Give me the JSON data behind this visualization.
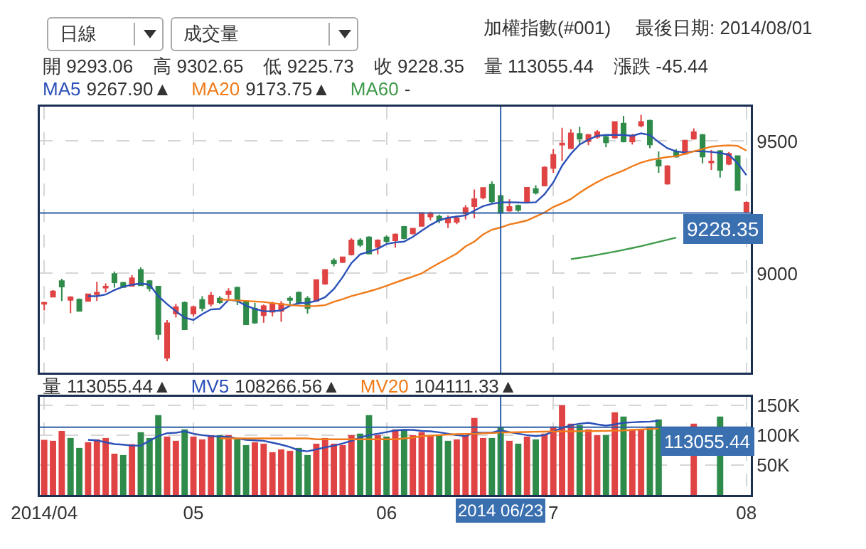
{
  "chart_data": [
    {
      "type": "candlestick",
      "title": "加權指數(#001)",
      "subtitle": "最後日期: 2014/08/01",
      "categories": [
        "2014/04",
        null,
        null,
        null,
        null,
        null,
        null,
        null,
        null,
        null,
        null,
        null,
        null,
        null,
        null,
        null,
        null,
        "05",
        null,
        null,
        null,
        null,
        null,
        null,
        null,
        null,
        null,
        null,
        null,
        null,
        null,
        null,
        null,
        null,
        null,
        null,
        null,
        null,
        null,
        "06",
        null,
        null,
        null,
        null,
        null,
        null,
        null,
        null,
        null,
        null,
        null,
        null,
        "2014 06/23",
        null,
        null,
        null,
        null,
        null,
        "07",
        null,
        null,
        null,
        null,
        null,
        null,
        null,
        null,
        null,
        null,
        null,
        null,
        null,
        null,
        null,
        null,
        null,
        null,
        null,
        null,
        null,
        "08"
      ],
      "ohlc": [
        [
          8885,
          8893,
          8860,
          8889
        ],
        [
          8912,
          8937,
          8910,
          8932
        ],
        [
          8971,
          8980,
          8896,
          8950
        ],
        [
          8900,
          8914,
          8850,
          8910
        ],
        [
          8901,
          8905,
          8857,
          8858
        ],
        [
          8896,
          8922,
          8893,
          8921
        ],
        [
          8921,
          8968,
          8896,
          8927
        ],
        [
          8946,
          8962,
          8928,
          8950
        ],
        [
          8998,
          9007,
          8946,
          8966
        ],
        [
          8964,
          8968,
          8946,
          8948
        ],
        [
          8953,
          8993,
          8950,
          8982
        ],
        [
          9013,
          9023,
          8953,
          8955
        ],
        [
          8971,
          8975,
          8932,
          8944
        ],
        [
          8950,
          8953,
          8749,
          8771
        ],
        [
          8681,
          8824,
          8668,
          8812
        ],
        [
          8848,
          8885,
          8833,
          8873
        ],
        [
          8889,
          8894,
          8787,
          8789
        ],
        [
          8848,
          8878,
          8837,
          8873
        ],
        [
          8900,
          8914,
          8857,
          8869
        ],
        [
          8885,
          8930,
          8875,
          8916
        ],
        [
          8905,
          8914,
          8885,
          8891
        ],
        [
          8921,
          8944,
          8905,
          8932
        ],
        [
          8946,
          8950,
          8880,
          8900
        ],
        [
          8893,
          8896,
          8806,
          8808
        ],
        [
          8867,
          8889,
          8810,
          8814
        ],
        [
          8842,
          8882,
          8814,
          8876
        ],
        [
          8855,
          8893,
          8837,
          8885
        ],
        [
          8858,
          8896,
          8817,
          8885
        ],
        [
          8905,
          8914,
          8882,
          8900
        ],
        [
          8927,
          8932,
          8882,
          8889
        ],
        [
          8905,
          8914,
          8848,
          8869
        ],
        [
          8896,
          8975,
          8893,
          8975
        ],
        [
          8961,
          9014,
          8957,
          9013
        ],
        [
          9048,
          9057,
          9027,
          9038
        ],
        [
          9043,
          9061,
          9039,
          9061
        ],
        [
          9072,
          9133,
          9068,
          9125
        ],
        [
          9125,
          9133,
          9100,
          9108
        ],
        [
          9136,
          9140,
          9072,
          9075
        ],
        [
          9100,
          9129,
          9072,
          9125
        ],
        [
          9136,
          9143,
          9115,
          9122
        ],
        [
          9125,
          9151,
          9097,
          9147
        ],
        [
          9176,
          9179,
          9129,
          9133
        ],
        [
          9151,
          9172,
          9147,
          9169
        ],
        [
          9179,
          9229,
          9179,
          9228
        ],
        [
          9215,
          9233,
          9201,
          9226
        ],
        [
          9215,
          9222,
          9190,
          9201
        ],
        [
          9192,
          9219,
          9172,
          9208
        ],
        [
          9195,
          9219,
          9186,
          9208
        ],
        [
          9226,
          9258,
          9204,
          9247
        ],
        [
          9254,
          9317,
          9208,
          9281
        ],
        [
          9287,
          9326,
          9280,
          9323
        ],
        [
          9335,
          9348,
          9265,
          9272
        ],
        [
          9293.06,
          9302.65,
          9225.73,
          9228.35
        ],
        [
          9237,
          9280,
          9233,
          9251
        ],
        [
          9256,
          9260,
          9233,
          9240
        ],
        [
          9272,
          9326,
          9272,
          9324
        ],
        [
          9319,
          9333,
          9298,
          9305
        ],
        [
          9332,
          9405,
          9330,
          9400
        ],
        [
          9398,
          9470,
          9380,
          9448
        ],
        [
          9486,
          9550,
          9425,
          9491
        ],
        [
          9473,
          9545,
          9470,
          9529
        ],
        [
          9527,
          9554,
          9484,
          9509
        ],
        [
          9500,
          9527,
          9484,
          9523
        ],
        [
          9516,
          9541,
          9509,
          9534
        ],
        [
          9516,
          9520,
          9477,
          9495
        ],
        [
          9513,
          9573,
          9509,
          9572
        ],
        [
          9566,
          9595,
          9495,
          9498
        ],
        [
          9498,
          9527,
          9487,
          9520
        ],
        [
          9559,
          9599,
          9552,
          9572
        ],
        [
          9577,
          9581,
          9473,
          9487
        ],
        [
          9427,
          9461,
          9380,
          9407
        ],
        [
          9339,
          9409,
          9335,
          9405
        ],
        [
          9461,
          9470,
          9437,
          9441
        ],
        [
          9452,
          9505,
          9448,
          9502
        ],
        [
          9509,
          9548,
          9505,
          9534
        ],
        [
          9523,
          9527,
          9416,
          9441
        ],
        [
          9419,
          9466,
          9391,
          9423
        ],
        [
          9462,
          9466,
          9362,
          9391
        ],
        [
          9414,
          9459,
          9409,
          9452
        ],
        [
          9443,
          9444,
          9312,
          9315
        ],
        [
          9233,
          9272,
          9233,
          9267
        ]
      ],
      "series": [
        {
          "type": "line",
          "name": "MA5",
          "color": "#2b50b8",
          "values": [
            null,
            null,
            null,
            null,
            null,
            8914,
            8914,
            8920,
            8937,
            8950,
            8957,
            8962,
            8957,
            8914,
            8884,
            8857,
            8833,
            8824,
            8846,
            8864,
            8866,
            8900,
            8896,
            8878,
            8866,
            8857,
            8857,
            8860,
            8878,
            8887,
            8889,
            8896,
            8910,
            8941,
            8986,
            9039,
            9072,
            9082,
            9093,
            9111,
            9117,
            9120,
            9138,
            9161,
            9183,
            9201,
            9210,
            9215,
            9219,
            9237,
            9254,
            9263,
            9267.9,
            9269,
            9268,
            9267,
            9269,
            9299,
            9344,
            9407,
            9452,
            9487,
            9505,
            9520,
            9523,
            9523,
            9523,
            9520,
            9529,
            9523,
            9496,
            9473,
            9461,
            9457,
            9461,
            9461,
            9459,
            9455,
            9448,
            9416,
            9371
          ]
        },
        {
          "type": "line",
          "name": "MA20",
          "color": "#f07b1a",
          "values": [
            null,
            null,
            null,
            null,
            null,
            null,
            null,
            null,
            null,
            null,
            null,
            null,
            null,
            null,
            null,
            null,
            null,
            null,
            null,
            null,
            8901,
            8900,
            8898,
            8896,
            8894,
            8892,
            8888,
            8884,
            8880,
            8878,
            8876,
            8877,
            8880,
            8893,
            8903,
            8914,
            8923,
            8932,
            8942,
            8953,
            8965,
            8977,
            8988,
            9000,
            9020,
            9039,
            9057,
            9075,
            9102,
            9120,
            9147,
            9165,
            9173.75,
            9185,
            9192,
            9200,
            9215,
            9230,
            9251,
            9265,
            9281,
            9305,
            9326,
            9345,
            9362,
            9376,
            9389,
            9405,
            9419,
            9428,
            9434,
            9440,
            9443,
            9452,
            9461,
            9470,
            9479,
            9482,
            9484,
            9482,
            9464
          ]
        },
        {
          "type": "line",
          "name": "MA60",
          "color": "#3f9a4a",
          "values": [
            null,
            null,
            null,
            null,
            null,
            null,
            null,
            null,
            null,
            null,
            null,
            null,
            null,
            null,
            null,
            null,
            null,
            null,
            null,
            null,
            null,
            null,
            null,
            null,
            null,
            null,
            null,
            null,
            null,
            null,
            null,
            null,
            null,
            null,
            null,
            null,
            null,
            null,
            null,
            null,
            null,
            null,
            null,
            null,
            null,
            null,
            null,
            null,
            null,
            null,
            null,
            null,
            null,
            null,
            null,
            null,
            null,
            null,
            null,
            null,
            9054,
            9059,
            9064,
            9070,
            9076,
            9082,
            9089,
            9096,
            9103,
            9111,
            9119,
            9127,
            9135,
            null,
            null,
            null,
            null,
            null,
            null,
            null,
            null
          ]
        }
      ],
      "ylim": [
        8625,
        9630
      ],
      "yticks": [
        9000,
        9500
      ],
      "grid": true,
      "legend": "top left",
      "tick_labels": "y",
      "ref_lines": [
        {
          "axis": "x",
          "value": "2014 06/23"
        },
        {
          "axis": "y",
          "value": 9228.35,
          "label": "9228.35"
        }
      ],
      "annotations": [
        "日線",
        "成交量",
        "開 9293.06",
        "高 9302.65",
        "低 9225.73",
        "收 9228.35",
        "量 113055.44",
        "漲跌 -45.44",
        "9267.90▲",
        "9173.75▲",
        "-"
      ]
    },
    {
      "type": "bar",
      "categories": [
        "2014/04",
        null,
        null,
        null,
        null,
        null,
        null,
        null,
        null,
        null,
        null,
        null,
        null,
        null,
        null,
        null,
        null,
        "05",
        null,
        null,
        null,
        null,
        null,
        null,
        null,
        null,
        null,
        null,
        null,
        null,
        null,
        null,
        null,
        null,
        null,
        null,
        null,
        null,
        null,
        "06",
        null,
        null,
        null,
        null,
        null,
        null,
        null,
        null,
        null,
        null,
        null,
        null,
        "2014 06/23",
        null,
        null,
        null,
        null,
        null,
        "7",
        null,
        null,
        null,
        null,
        null,
        null,
        null,
        null,
        null,
        null,
        null,
        null,
        null,
        null,
        null,
        null,
        null,
        null,
        null,
        null,
        null,
        "08"
      ],
      "series": [
        {
          "type": "bar",
          "name": "量",
          "colors": [
            "#e04343",
            "#e04343",
            "#e04343",
            "#2e8b4a",
            "#2e8b4a",
            "#e04343",
            "#e04343",
            "#e04343",
            "#e04343",
            "#2e8b4a",
            "#e04343",
            "#2e8b4a",
            "#2e8b4a",
            "#2e8b4a",
            "#e04343",
            "#e04343",
            "#2e8b4a",
            "#e04343",
            "#e04343",
            "#e04343",
            "#2e8b4a",
            "#e04343",
            "#2e8b4a",
            "#2e8b4a",
            "#e04343",
            "#e04343",
            "#e04343",
            "#e04343",
            "#e04343",
            "#2e8b4a",
            "#2e8b4a",
            "#e04343",
            "#e04343",
            "#e04343",
            "#e04343",
            "#e04343",
            "#2e8b4a",
            "#2e8b4a",
            "#e04343",
            "#2e8b4a",
            "#e04343",
            "#2e8b4a",
            "#e04343",
            "#e04343",
            "#e04343",
            "#2e8b4a",
            "#2e8b4a",
            "#e04343",
            "#e04343",
            "#e04343",
            "#e04343",
            "#2e8b4a",
            "#2e8b4a",
            "#e04343",
            "#2e8b4a",
            "#e04343",
            "#2e8b4a",
            "#e04343",
            "#e04343",
            "#e04343",
            "#e04343",
            "#2e8b4a",
            "#e04343",
            "#e04343",
            "#2e8b4a",
            "#e04343",
            "#2e8b4a",
            "#e04343",
            "#e04343",
            "#2e8b4a",
            "#2e8b4a",
            "#2e8b4a",
            "#e04343",
            "#e04343",
            "#e04343",
            "#2e8b4a",
            "#2e8b4a",
            "#2e8b4a",
            "#e04343",
            "#e04343",
            "#2e8b4a"
          ],
          "values": [
            92100,
            90500,
            107100,
            95200,
            78600,
            88100,
            92900,
            95200,
            69000,
            66700,
            84900,
            104800,
            95200,
            133300,
            97600,
            90500,
            109500,
            97600,
            92900,
            100000,
            100000,
            100000,
            92900,
            83300,
            88100,
            85700,
            71400,
            76200,
            73800,
            78600,
            66700,
            85700,
            95200,
            85700,
            83300,
            100000,
            102400,
            133300,
            100000,
            97600,
            109500,
            109500,
            100000,
            104800,
            100000,
            100000,
            90500,
            92900,
            100000,
            128600,
            95200,
            95200,
            113055.44,
            90500,
            85700,
            97600,
            92900,
            102400,
            114300,
            150000,
            119000,
            116700,
            109500,
            100000,
            100000,
            138100,
            131000,
            109500,
            109500,
            114300,
            126200,
            null,
            null,
            null,
            119000,
            null,
            null,
            131000,
            null,
            null,
            null
          ]
        },
        {
          "type": "line",
          "name": "MV5",
          "color": "#2b50b8",
          "values": [
            null,
            null,
            null,
            null,
            null,
            92100,
            91300,
            88000,
            85000,
            84100,
            82500,
            82500,
            90500,
            98400,
            103200,
            104000,
            106300,
            102400,
            100000,
            98400,
            97600,
            96800,
            94400,
            92100,
            91300,
            90500,
            87300,
            84100,
            80000,
            74600,
            73000,
            76200,
            79400,
            82500,
            86000,
            90500,
            96000,
            100000,
            102400,
            105000,
            107900,
            108700,
            108700,
            107000,
            106300,
            104800,
            102400,
            100000,
            98400,
            104000,
            104000,
            104000,
            108266.56,
            105000,
            102400,
            100000,
            98400,
            100000,
            106300,
            112000,
            116700,
            119000,
            120600,
            118000,
            115900,
            118000,
            120600,
            121400,
            122200,
            122500,
            123800,
            null,
            null,
            null,
            null,
            null,
            null,
            null,
            null,
            null,
            null
          ]
        },
        {
          "type": "line",
          "name": "MV20",
          "color": "#f07b1a",
          "values": [
            null,
            null,
            null,
            null,
            null,
            null,
            null,
            null,
            null,
            null,
            null,
            null,
            null,
            null,
            null,
            null,
            null,
            null,
            null,
            null,
            94400,
            94400,
            94400,
            94400,
            94400,
            94400,
            94400,
            94400,
            94400,
            94400,
            94400,
            93000,
            93000,
            93000,
            93000,
            93000,
            93000,
            93000,
            93000,
            93000,
            93000,
            94400,
            96000,
            98400,
            99000,
            100000,
            101000,
            101600,
            102000,
            102400,
            103000,
            103500,
            104111.33,
            104500,
            104800,
            105200,
            105600,
            105800,
            106000,
            106200,
            106300,
            106500,
            106700,
            106900,
            107100,
            107500,
            107900,
            108700,
            109500,
            110300,
            111100,
            null,
            null,
            null,
            null,
            null,
            null,
            null,
            null,
            null,
            null
          ]
        }
      ],
      "ylim": [
        0,
        164000
      ],
      "yticks": [
        {
          "value": 50000,
          "label": "50K"
        },
        {
          "value": 100000,
          "label": "100K"
        },
        {
          "value": 150000,
          "label": "150K"
        }
      ],
      "grid": true,
      "legend": "top left",
      "ref_lines": [
        {
          "axis": "x",
          "value": "2014 06/23"
        },
        {
          "axis": "y",
          "value": 113055.44,
          "label": "113055.44"
        }
      ],
      "annotations": [
        "113055.44▲",
        "108266.56▲",
        "104111.33▲"
      ]
    }
  ]
}
